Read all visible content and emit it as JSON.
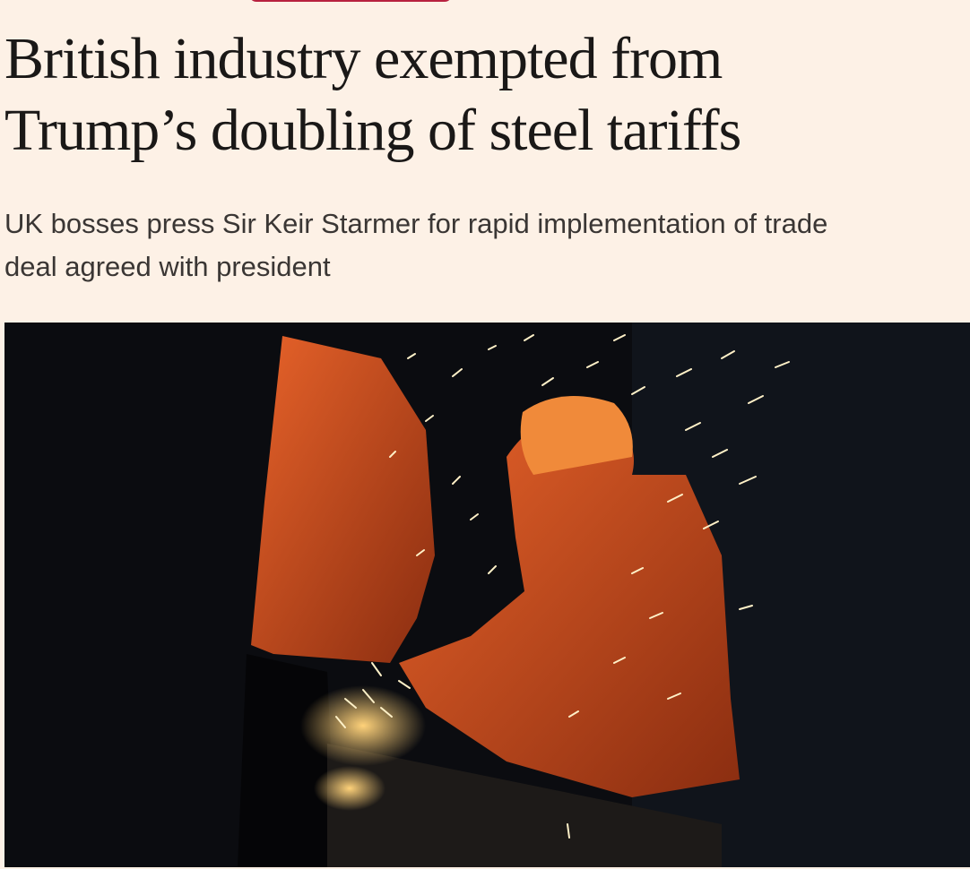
{
  "article": {
    "headline": {
      "lines": [
        "British industry exempted from",
        "Trump’s doubling of steel tariffs"
      ]
    },
    "standfirst": {
      "lines": [
        "UK bosses press Sir Keir Starmer for rapid implementation of trade",
        "deal agreed with president"
      ]
    }
  }
}
